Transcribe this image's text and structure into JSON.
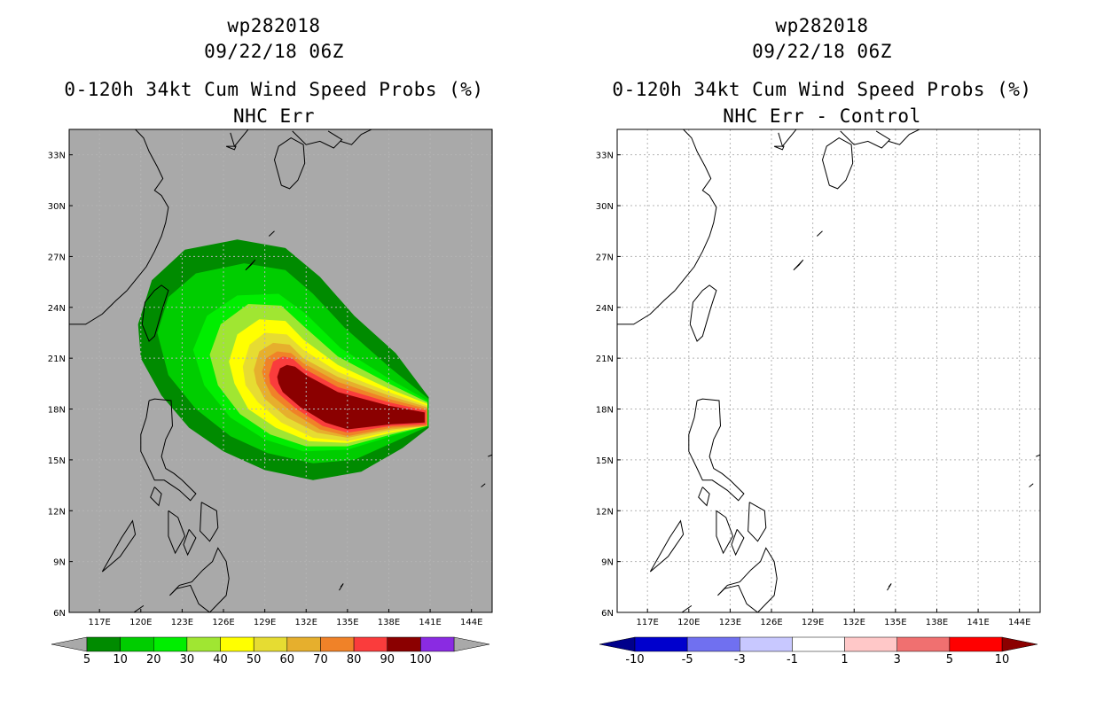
{
  "panels": [
    {
      "id": "left",
      "title_line1": "wp282018",
      "title_line2": "09/22/18 06Z",
      "title_line3": "0-120h 34kt Cum Wind Speed Probs (%)",
      "title_line4": "NHC Err",
      "background_color": "#a9a9a9",
      "colorbar": {
        "labels": [
          "5",
          "10",
          "20",
          "30",
          "40",
          "50",
          "60",
          "70",
          "80",
          "90",
          "100"
        ],
        "colors": [
          "#008b00",
          "#00cd00",
          "#00ee00",
          "#a0e632",
          "#ffff00",
          "#e6dc32",
          "#e6af2d",
          "#f08228",
          "#fa3c3c",
          "#8b0000",
          "#8a2be2"
        ],
        "under_color": "#a9a9a9",
        "over_color": "#a9a9a9"
      }
    },
    {
      "id": "right",
      "title_line1": "wp282018",
      "title_line2": "09/22/18 06Z",
      "title_line3": "0-120h 34kt Cum Wind Speed Probs (%)",
      "title_line4": "NHC Err - Control",
      "background_color": "#ffffff",
      "colorbar": {
        "labels": [
          "-10",
          "-5",
          "-3",
          "-1",
          "1",
          "3",
          "5",
          "10"
        ],
        "colors": [
          "#0000cd",
          "#7070f0",
          "#c8c8ff",
          "#ffffff",
          "#ffc8c8",
          "#f07070",
          "#ff0000"
        ],
        "under_color": "#00008b",
        "over_color": "#8b0000"
      }
    }
  ],
  "map": {
    "lon_labels": [
      "117E",
      "120E",
      "123E",
      "126E",
      "129E",
      "132E",
      "135E",
      "138E",
      "141E",
      "144E"
    ],
    "lat_labels": [
      "33N",
      "30N",
      "27N",
      "24N",
      "21N",
      "18N",
      "15N",
      "12N",
      "9N",
      "6N"
    ],
    "lon_values": [
      117,
      120,
      123,
      126,
      129,
      132,
      135,
      138,
      141,
      144
    ],
    "lat_values": [
      33,
      30,
      27,
      24,
      21,
      18,
      15,
      12,
      9,
      6
    ],
    "lon_range": [
      114.8,
      145.5
    ],
    "lat_range": [
      6,
      34.5
    ]
  },
  "probability_field": {
    "contour_levels_percent": [
      5,
      10,
      20,
      30,
      40,
      50,
      60,
      70,
      80,
      90
    ],
    "max_lon": 140.8,
    "center_lat": 17.6
  }
}
